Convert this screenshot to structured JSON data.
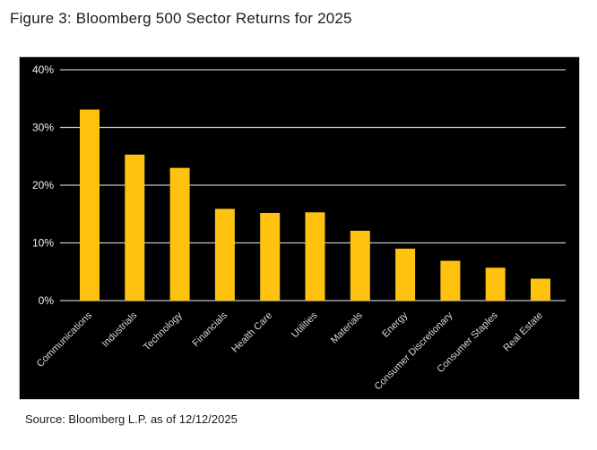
{
  "figure": {
    "title": "Figure 3: Bloomberg 500 Sector Returns for 2025",
    "source": "Source: Bloomberg L.P. as of 12/12/2025"
  },
  "colors": {
    "page_bg": "#ffffff",
    "title_text": "#1b1b1b",
    "panel_bg": "#000000",
    "panel_border": "#c9c9c9",
    "bar": "#ffc20e",
    "gridline": "#c4c4c4",
    "ytick_text": "#f2f2f2",
    "xtick_text": "#d9d9d9"
  },
  "chart_data": {
    "type": "bar",
    "title": "Bloomberg 500 Sector Returns for 2025",
    "categories": [
      "Communications",
      "Industrials",
      "Technology",
      "Financials",
      "Health Care",
      "Utilities",
      "Materials",
      "Energy",
      "Consumer Discretionary",
      "Consumer Staples",
      "Real Estate"
    ],
    "values": [
      33.1,
      25.3,
      23.0,
      15.9,
      15.2,
      15.3,
      12.1,
      9.0,
      6.9,
      5.7,
      3.8
    ],
    "unit": "%",
    "xlabel": "",
    "ylabel": "",
    "ylim": [
      0,
      40
    ],
    "yticks": [
      0,
      10,
      20,
      30,
      40
    ],
    "ytick_labels": [
      "0%",
      "10%",
      "20%",
      "30%",
      "40%"
    ],
    "grid": true,
    "legend": false,
    "background": "black",
    "x_label_rotation": -45
  }
}
